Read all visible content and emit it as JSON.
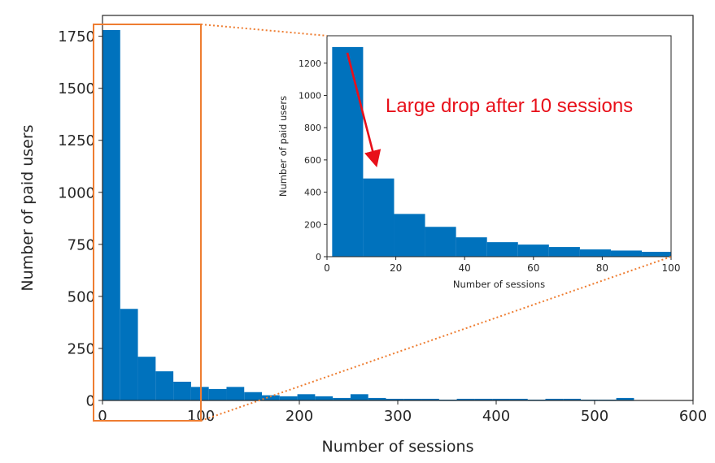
{
  "chart_data": [
    {
      "type": "bar",
      "xlabel": "Number of sessions",
      "ylabel": "Number of paid users",
      "xlim": [
        0,
        600
      ],
      "ylim": [
        0,
        1850
      ],
      "xticks": [
        0,
        100,
        200,
        300,
        400,
        500,
        600
      ],
      "yticks": [
        0,
        250,
        500,
        750,
        1000,
        1250,
        1500,
        1750
      ],
      "bin_width": 18,
      "bins": [
        {
          "x0": 0,
          "x1": 18,
          "y": 1780
        },
        {
          "x0": 18,
          "x1": 36,
          "y": 440
        },
        {
          "x0": 36,
          "x1": 54,
          "y": 210
        },
        {
          "x0": 54,
          "x1": 72,
          "y": 140
        },
        {
          "x0": 72,
          "x1": 90,
          "y": 90
        },
        {
          "x0": 90,
          "x1": 108,
          "y": 65
        },
        {
          "x0": 108,
          "x1": 126,
          "y": 55
        },
        {
          "x0": 126,
          "x1": 144,
          "y": 65
        },
        {
          "x0": 144,
          "x1": 162,
          "y": 40
        },
        {
          "x0": 162,
          "x1": 180,
          "y": 25
        },
        {
          "x0": 180,
          "x1": 198,
          "y": 20
        },
        {
          "x0": 198,
          "x1": 216,
          "y": 30
        },
        {
          "x0": 216,
          "x1": 234,
          "y": 20
        },
        {
          "x0": 234,
          "x1": 252,
          "y": 12
        },
        {
          "x0": 252,
          "x1": 270,
          "y": 30
        },
        {
          "x0": 270,
          "x1": 288,
          "y": 12
        },
        {
          "x0": 288,
          "x1": 306,
          "y": 8
        },
        {
          "x0": 306,
          "x1": 324,
          "y": 8
        },
        {
          "x0": 324,
          "x1": 342,
          "y": 8
        },
        {
          "x0": 342,
          "x1": 360,
          "y": 4
        },
        {
          "x0": 360,
          "x1": 378,
          "y": 8
        },
        {
          "x0": 378,
          "x1": 396,
          "y": 8
        },
        {
          "x0": 396,
          "x1": 414,
          "y": 8
        },
        {
          "x0": 414,
          "x1": 432,
          "y": 8
        },
        {
          "x0": 432,
          "x1": 450,
          "y": 4
        },
        {
          "x0": 450,
          "x1": 468,
          "y": 8
        },
        {
          "x0": 468,
          "x1": 486,
          "y": 8
        },
        {
          "x0": 486,
          "x1": 504,
          "y": 4
        },
        {
          "x0": 504,
          "x1": 522,
          "y": 4
        },
        {
          "x0": 522,
          "x1": 540,
          "y": 12
        },
        {
          "x0": 540,
          "x1": 558,
          "y": 2
        },
        {
          "x0": 558,
          "x1": 576,
          "y": 1
        }
      ]
    },
    {
      "type": "bar",
      "xlabel": "Number of sessions",
      "ylabel": "Number of paid users",
      "xlim": [
        0,
        100
      ],
      "ylim": [
        0,
        1370
      ],
      "xticks": [
        0,
        20,
        40,
        60,
        80,
        100
      ],
      "yticks": [
        0,
        200,
        400,
        600,
        800,
        1000,
        1200
      ],
      "bin_width": 9,
      "bins": [
        {
          "x0": 1.5,
          "x1": 10.5,
          "y": 1300
        },
        {
          "x0": 10.5,
          "x1": 19.5,
          "y": 485
        },
        {
          "x0": 19.5,
          "x1": 28.5,
          "y": 265
        },
        {
          "x0": 28.5,
          "x1": 37.5,
          "y": 185
        },
        {
          "x0": 37.5,
          "x1": 46.5,
          "y": 120
        },
        {
          "x0": 46.5,
          "x1": 55.5,
          "y": 90
        },
        {
          "x0": 55.5,
          "x1": 64.5,
          "y": 75
        },
        {
          "x0": 64.5,
          "x1": 73.5,
          "y": 60
        },
        {
          "x0": 73.5,
          "x1": 82.5,
          "y": 45
        },
        {
          "x0": 82.5,
          "x1": 91.5,
          "y": 38
        },
        {
          "x0": 91.5,
          "x1": 100,
          "y": 30
        }
      ],
      "annotation": {
        "text": "Large drop after 10 sessions",
        "color": "#e8101a"
      }
    }
  ],
  "colors": {
    "bar": "#0072bd",
    "highlight_box": "#ee7d31",
    "annotation": "#e8101a"
  }
}
